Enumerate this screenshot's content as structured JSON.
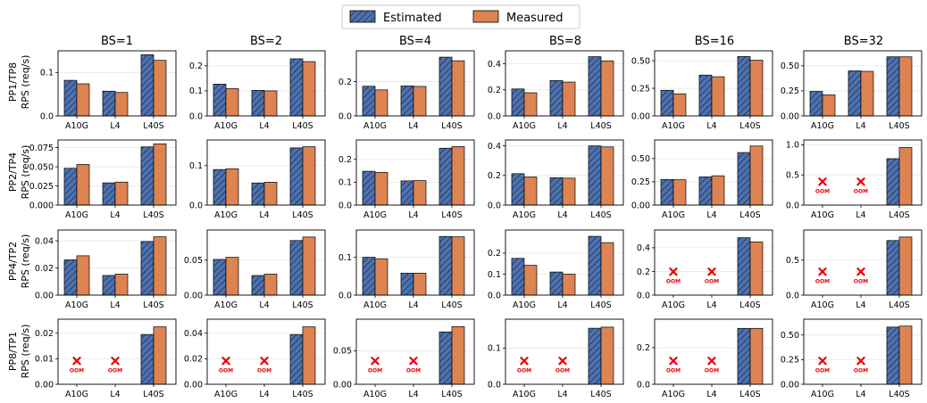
{
  "legend": {
    "estimated_label": "Estimated",
    "measured_label": "Measured"
  },
  "colors": {
    "estimated": "#4c72b0",
    "measured": "#dd8452",
    "oom": "#e8000b",
    "grid": "#e6e6e6"
  },
  "oom_label": "OOM",
  "columns": [
    "BS=1",
    "BS=2",
    "BS=4",
    "BS=8",
    "BS=16",
    "BS=32"
  ],
  "rows": [
    {
      "label_top": "PP1/TP8",
      "label_bottom": "RPS (req/s)"
    },
    {
      "label_top": "PP2/TP4",
      "label_bottom": "RPS (req/s)"
    },
    {
      "label_top": "PP4/TP2",
      "label_bottom": "RPS (req/s)"
    },
    {
      "label_top": "PP8/TP1",
      "label_bottom": "RPS (req/s)"
    }
  ],
  "chart_data": [
    {
      "row": 0,
      "col": 0,
      "type": "bar",
      "categories": [
        "A10G",
        "L4",
        "L40S"
      ],
      "series": [
        {
          "name": "Estimated",
          "values": [
            0.082,
            0.057,
            0.141
          ]
        },
        {
          "name": "Measured",
          "values": [
            0.074,
            0.054,
            0.128
          ]
        }
      ],
      "ylim": [
        0,
        0.15
      ],
      "yticks": [
        0,
        0.1
      ],
      "tick_labels": [
        "0.0",
        "0.1"
      ],
      "oom": [
        false,
        false,
        false
      ]
    },
    {
      "row": 0,
      "col": 1,
      "type": "bar",
      "categories": [
        "A10G",
        "L4",
        "L40S"
      ],
      "series": [
        {
          "name": "Estimated",
          "values": [
            0.127,
            0.102,
            0.228
          ]
        },
        {
          "name": "Measured",
          "values": [
            0.109,
            0.1,
            0.217
          ]
        }
      ],
      "ylim": [
        0,
        0.26
      ],
      "yticks": [
        0,
        0.1,
        0.2
      ],
      "tick_labels": [
        "0.0",
        "0.1",
        "0.2"
      ],
      "oom": [
        false,
        false,
        false
      ]
    },
    {
      "row": 0,
      "col": 2,
      "type": "bar",
      "categories": [
        "A10G",
        "L4",
        "L40S"
      ],
      "series": [
        {
          "name": "Estimated",
          "values": [
            0.173,
            0.175,
            0.343
          ]
        },
        {
          "name": "Measured",
          "values": [
            0.152,
            0.172,
            0.322
          ]
        }
      ],
      "ylim": [
        0,
        0.38
      ],
      "yticks": [
        0,
        0.2
      ],
      "tick_labels": [
        "0.0",
        "0.2"
      ],
      "oom": [
        false,
        false,
        false
      ]
    },
    {
      "row": 0,
      "col": 3,
      "type": "bar",
      "categories": [
        "A10G",
        "L4",
        "L40S"
      ],
      "series": [
        {
          "name": "Estimated",
          "values": [
            0.207,
            0.272,
            0.455
          ]
        },
        {
          "name": "Measured",
          "values": [
            0.178,
            0.26,
            0.423
          ]
        }
      ],
      "ylim": [
        0,
        0.5
      ],
      "yticks": [
        0,
        0.2,
        0.4
      ],
      "tick_labels": [
        "0.0",
        "0.2",
        "0.4"
      ],
      "oom": [
        false,
        false,
        false
      ]
    },
    {
      "row": 0,
      "col": 4,
      "type": "bar",
      "categories": [
        "A10G",
        "L4",
        "L40S"
      ],
      "series": [
        {
          "name": "Estimated",
          "values": [
            0.232,
            0.37,
            0.538
          ]
        },
        {
          "name": "Measured",
          "values": [
            0.2,
            0.355,
            0.505
          ]
        }
      ],
      "ylim": [
        0,
        0.59
      ],
      "yticks": [
        0,
        0.25,
        0.5
      ],
      "tick_labels": [
        "0.00",
        "0.25",
        "0.50"
      ],
      "oom": [
        false,
        false,
        false
      ]
    },
    {
      "row": 0,
      "col": 5,
      "type": "bar",
      "categories": [
        "A10G",
        "L4",
        "L40S"
      ],
      "series": [
        {
          "name": "Estimated",
          "values": [
            0.245,
            0.45,
            0.59
          ]
        },
        {
          "name": "Measured",
          "values": [
            0.21,
            0.445,
            0.59
          ]
        }
      ],
      "ylim": [
        0,
        0.65
      ],
      "yticks": [
        0,
        0.25,
        0.5
      ],
      "tick_labels": [
        "0.00",
        "0.25",
        "0.50"
      ],
      "oom": [
        false,
        false,
        false
      ]
    },
    {
      "row": 1,
      "col": 0,
      "type": "bar",
      "categories": [
        "A10G",
        "L4",
        "L40S"
      ],
      "series": [
        {
          "name": "Estimated",
          "values": [
            0.048,
            0.029,
            0.076
          ]
        },
        {
          "name": "Measured",
          "values": [
            0.053,
            0.03,
            0.08
          ]
        }
      ],
      "ylim": [
        0,
        0.085
      ],
      "yticks": [
        0,
        0.025,
        0.05,
        0.075
      ],
      "tick_labels": [
        "0.000",
        "0.025",
        "0.050",
        "0.075"
      ],
      "oom": [
        false,
        false,
        false
      ]
    },
    {
      "row": 1,
      "col": 1,
      "type": "bar",
      "categories": [
        "A10G",
        "L4",
        "L40S"
      ],
      "series": [
        {
          "name": "Estimated",
          "values": [
            0.09,
            0.056,
            0.145
          ]
        },
        {
          "name": "Measured",
          "values": [
            0.092,
            0.058,
            0.148
          ]
        }
      ],
      "ylim": [
        0,
        0.165
      ],
      "yticks": [
        0,
        0.1
      ],
      "tick_labels": [
        "0.0",
        "0.1"
      ],
      "oom": [
        false,
        false,
        false
      ]
    },
    {
      "row": 1,
      "col": 2,
      "type": "bar",
      "categories": [
        "A10G",
        "L4",
        "L40S"
      ],
      "series": [
        {
          "name": "Estimated",
          "values": [
            0.148,
            0.106,
            0.249
          ]
        },
        {
          "name": "Measured",
          "values": [
            0.143,
            0.107,
            0.256
          ]
        }
      ],
      "ylim": [
        0,
        0.285
      ],
      "yticks": [
        0,
        0.1,
        0.2
      ],
      "tick_labels": [
        "0.0",
        "0.1",
        "0.2"
      ],
      "oom": [
        false,
        false,
        false
      ]
    },
    {
      "row": 1,
      "col": 3,
      "type": "bar",
      "categories": [
        "A10G",
        "L4",
        "L40S"
      ],
      "series": [
        {
          "name": "Estimated",
          "values": [
            0.212,
            0.185,
            0.4
          ]
        },
        {
          "name": "Measured",
          "values": [
            0.19,
            0.182,
            0.393
          ]
        }
      ],
      "ylim": [
        0,
        0.44
      ],
      "yticks": [
        0,
        0.2,
        0.4
      ],
      "tick_labels": [
        "0.0",
        "0.2",
        "0.4"
      ],
      "oom": [
        false,
        false,
        false
      ]
    },
    {
      "row": 1,
      "col": 4,
      "type": "bar",
      "categories": [
        "A10G",
        "L4",
        "L40S"
      ],
      "series": [
        {
          "name": "Estimated",
          "values": [
            0.275,
            0.303,
            0.565
          ]
        },
        {
          "name": "Measured",
          "values": [
            0.272,
            0.315,
            0.635
          ]
        }
      ],
      "ylim": [
        0,
        0.7
      ],
      "yticks": [
        0,
        0.25,
        0.5
      ],
      "tick_labels": [
        "0.00",
        "0.25",
        "0.50"
      ],
      "oom": [
        false,
        false,
        false
      ]
    },
    {
      "row": 1,
      "col": 5,
      "type": "bar",
      "categories": [
        "A10G",
        "L4",
        "L40S"
      ],
      "series": [
        {
          "name": "Estimated",
          "values": [
            0,
            0,
            0.77
          ]
        },
        {
          "name": "Measured",
          "values": [
            0,
            0,
            0.955
          ]
        }
      ],
      "ylim": [
        0,
        1.08
      ],
      "yticks": [
        0,
        0.5,
        1.0
      ],
      "tick_labels": [
        "0.0",
        "0.5",
        "1.0"
      ],
      "oom": [
        true,
        true,
        false
      ]
    },
    {
      "row": 2,
      "col": 0,
      "type": "bar",
      "categories": [
        "A10G",
        "L4",
        "L40S"
      ],
      "series": [
        {
          "name": "Estimated",
          "values": [
            0.026,
            0.0145,
            0.0395
          ]
        },
        {
          "name": "Measured",
          "values": [
            0.029,
            0.0155,
            0.043
          ]
        }
      ],
      "ylim": [
        0,
        0.048
      ],
      "yticks": [
        0,
        0.02,
        0.04
      ],
      "tick_labels": [
        "0.00",
        "0.02",
        "0.04"
      ],
      "oom": [
        false,
        false,
        false
      ]
    },
    {
      "row": 2,
      "col": 1,
      "type": "bar",
      "categories": [
        "A10G",
        "L4",
        "L40S"
      ],
      "series": [
        {
          "name": "Estimated",
          "values": [
            0.051,
            0.028,
            0.078
          ]
        },
        {
          "name": "Measured",
          "values": [
            0.054,
            0.03,
            0.083
          ]
        }
      ],
      "ylim": [
        0,
        0.093
      ],
      "yticks": [
        0,
        0.05
      ],
      "tick_labels": [
        "0.00",
        "0.05"
      ],
      "oom": [
        false,
        false,
        false
      ]
    },
    {
      "row": 2,
      "col": 2,
      "type": "bar",
      "categories": [
        "A10G",
        "L4",
        "L40S"
      ],
      "series": [
        {
          "name": "Estimated",
          "values": [
            0.1,
            0.058,
            0.155
          ]
        },
        {
          "name": "Measured",
          "values": [
            0.096,
            0.058,
            0.154
          ]
        }
      ],
      "ylim": [
        0,
        0.172
      ],
      "yticks": [
        0,
        0.1
      ],
      "tick_labels": [
        "0.0",
        "0.1"
      ],
      "oom": [
        false,
        false,
        false
      ]
    },
    {
      "row": 2,
      "col": 3,
      "type": "bar",
      "categories": [
        "A10G",
        "L4",
        "L40S"
      ],
      "series": [
        {
          "name": "Estimated",
          "values": [
            0.175,
            0.11,
            0.28
          ]
        },
        {
          "name": "Measured",
          "values": [
            0.142,
            0.1,
            0.25
          ]
        }
      ],
      "ylim": [
        0,
        0.31
      ],
      "yticks": [
        0,
        0.1,
        0.2
      ],
      "tick_labels": [
        "0.0",
        "0.1",
        "0.2"
      ],
      "oom": [
        false,
        false,
        false
      ]
    },
    {
      "row": 2,
      "col": 4,
      "type": "bar",
      "categories": [
        "A10G",
        "L4",
        "L40S"
      ],
      "series": [
        {
          "name": "Estimated",
          "values": [
            0,
            0,
            0.485
          ]
        },
        {
          "name": "Measured",
          "values": [
            0,
            0,
            0.45
          ]
        }
      ],
      "ylim": [
        0,
        0.55
      ],
      "yticks": [
        0,
        0.2,
        0.4
      ],
      "tick_labels": [
        "0.0",
        "0.2",
        "0.4"
      ],
      "oom": [
        true,
        true,
        false
      ]
    },
    {
      "row": 2,
      "col": 5,
      "type": "bar",
      "categories": [
        "A10G",
        "L4",
        "L40S"
      ],
      "series": [
        {
          "name": "Estimated",
          "values": [
            0,
            0,
            0.78
          ]
        },
        {
          "name": "Measured",
          "values": [
            0,
            0,
            0.83
          ]
        }
      ],
      "ylim": [
        0,
        0.93
      ],
      "yticks": [
        0,
        0.5
      ],
      "tick_labels": [
        "0.0",
        "0.5"
      ],
      "oom": [
        true,
        true,
        false
      ]
    },
    {
      "row": 3,
      "col": 0,
      "type": "bar",
      "categories": [
        "A10G",
        "L4",
        "L40S"
      ],
      "series": [
        {
          "name": "Estimated",
          "values": [
            0,
            0,
            0.0195
          ]
        },
        {
          "name": "Measured",
          "values": [
            0,
            0,
            0.0225
          ]
        }
      ],
      "ylim": [
        0,
        0.0255
      ],
      "yticks": [
        0,
        0.01,
        0.02
      ],
      "tick_labels": [
        "0.00",
        "0.01",
        "0.02"
      ],
      "oom": [
        true,
        true,
        false
      ]
    },
    {
      "row": 3,
      "col": 1,
      "type": "bar",
      "categories": [
        "A10G",
        "L4",
        "L40S"
      ],
      "series": [
        {
          "name": "Estimated",
          "values": [
            0,
            0,
            0.039
          ]
        },
        {
          "name": "Measured",
          "values": [
            0,
            0,
            0.045
          ]
        }
      ],
      "ylim": [
        0,
        0.051
      ],
      "yticks": [
        0,
        0.02,
        0.04
      ],
      "tick_labels": [
        "0.00",
        "0.02",
        "0.04"
      ],
      "oom": [
        true,
        true,
        false
      ]
    },
    {
      "row": 3,
      "col": 2,
      "type": "bar",
      "categories": [
        "A10G",
        "L4",
        "L40S"
      ],
      "series": [
        {
          "name": "Estimated",
          "values": [
            0,
            0,
            0.078
          ]
        },
        {
          "name": "Measured",
          "values": [
            0,
            0,
            0.086
          ]
        }
      ],
      "ylim": [
        0,
        0.097
      ],
      "yticks": [
        0,
        0.05
      ],
      "tick_labels": [
        "0.00",
        "0.05"
      ],
      "oom": [
        true,
        true,
        false
      ]
    },
    {
      "row": 3,
      "col": 3,
      "type": "bar",
      "categories": [
        "A10G",
        "L4",
        "L40S"
      ],
      "series": [
        {
          "name": "Estimated",
          "values": [
            0,
            0,
            0.155
          ]
        },
        {
          "name": "Measured",
          "values": [
            0,
            0,
            0.158
          ]
        }
      ],
      "ylim": [
        0,
        0.18
      ],
      "yticks": [
        0,
        0.1
      ],
      "tick_labels": [
        "0.0",
        "0.1"
      ],
      "oom": [
        true,
        true,
        false
      ]
    },
    {
      "row": 3,
      "col": 4,
      "type": "bar",
      "categories": [
        "A10G",
        "L4",
        "L40S"
      ],
      "series": [
        {
          "name": "Estimated",
          "values": [
            0,
            0,
            0.305
          ]
        },
        {
          "name": "Measured",
          "values": [
            0,
            0,
            0.305
          ]
        }
      ],
      "ylim": [
        0,
        0.355
      ],
      "yticks": [
        0,
        0.2
      ],
      "tick_labels": [
        "0.0",
        "0.2"
      ],
      "oom": [
        true,
        true,
        false
      ]
    },
    {
      "row": 3,
      "col": 5,
      "type": "bar",
      "categories": [
        "A10G",
        "L4",
        "L40S"
      ],
      "series": [
        {
          "name": "Estimated",
          "values": [
            0,
            0,
            0.58
          ]
        },
        {
          "name": "Measured",
          "values": [
            0,
            0,
            0.59
          ]
        }
      ],
      "ylim": [
        0,
        0.66
      ],
      "yticks": [
        0,
        0.25,
        0.5
      ],
      "tick_labels": [
        "0.00",
        "0.25",
        "0.50"
      ],
      "oom": [
        true,
        true,
        false
      ]
    }
  ]
}
